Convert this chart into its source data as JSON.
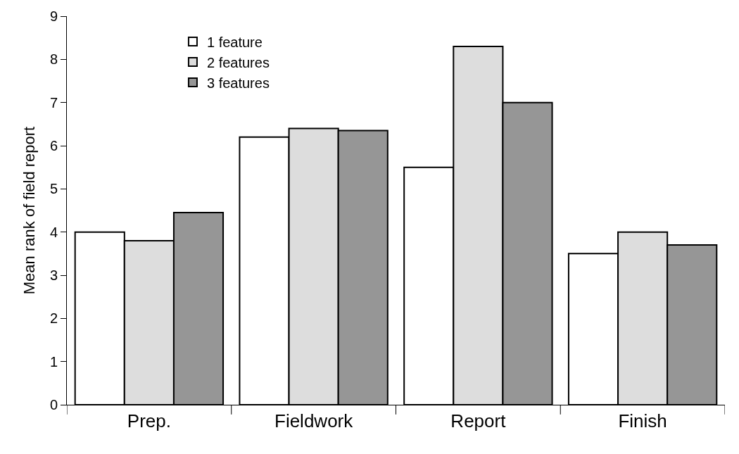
{
  "chart_data": {
    "type": "bar",
    "ylabel": "Mean rank of field report",
    "categories": [
      "Prep.",
      "Fieldwork",
      "Report",
      "Finish"
    ],
    "series": [
      {
        "name": "1 feature",
        "color": "#ffffff",
        "values": [
          4.0,
          6.2,
          5.5,
          3.5
        ]
      },
      {
        "name": "2 features",
        "color": "#dddddd",
        "values": [
          3.8,
          6.4,
          8.3,
          4.0
        ]
      },
      {
        "name": "3 features",
        "color": "#969696",
        "values": [
          4.45,
          6.35,
          7.0,
          3.7
        ]
      }
    ],
    "ylim": [
      0,
      9
    ],
    "yticks": [
      0,
      1,
      2,
      3,
      4,
      5,
      6,
      7,
      8,
      9
    ],
    "grid": false,
    "legend": "top left"
  }
}
